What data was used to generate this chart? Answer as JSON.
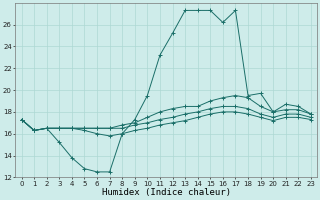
{
  "xlabel": "Humidex (Indice chaleur)",
  "background_color": "#ceecea",
  "grid_color": "#aed8d4",
  "line_color": "#1a6e68",
  "x": [
    0,
    1,
    2,
    3,
    4,
    5,
    6,
    7,
    8,
    9,
    10,
    11,
    12,
    13,
    14,
    15,
    16,
    17,
    18,
    19,
    20,
    21,
    22,
    23
  ],
  "line1": [
    17.3,
    16.3,
    16.5,
    15.2,
    13.8,
    12.8,
    12.5,
    12.5,
    16.0,
    17.3,
    19.5,
    23.2,
    25.2,
    27.3,
    27.3,
    27.3,
    26.2,
    27.3,
    19.5,
    19.7,
    18.0,
    18.7,
    18.5,
    17.8
  ],
  "line2": [
    17.3,
    16.3,
    16.5,
    16.5,
    16.5,
    16.5,
    16.5,
    16.5,
    16.8,
    17.0,
    17.5,
    18.0,
    18.3,
    18.5,
    18.5,
    19.0,
    19.3,
    19.5,
    19.3,
    18.5,
    18.0,
    18.2,
    18.2,
    17.8
  ],
  "line3": [
    17.3,
    16.3,
    16.5,
    16.5,
    16.5,
    16.5,
    16.5,
    16.5,
    16.5,
    16.8,
    17.0,
    17.3,
    17.5,
    17.8,
    18.0,
    18.3,
    18.5,
    18.5,
    18.3,
    17.8,
    17.5,
    17.8,
    17.8,
    17.5
  ],
  "line4": [
    17.3,
    16.3,
    16.5,
    16.5,
    16.5,
    16.3,
    16.0,
    15.8,
    16.0,
    16.3,
    16.5,
    16.8,
    17.0,
    17.2,
    17.5,
    17.8,
    18.0,
    18.0,
    17.8,
    17.5,
    17.2,
    17.5,
    17.5,
    17.3
  ],
  "ylim": [
    12,
    28
  ],
  "yticks": [
    12,
    14,
    16,
    18,
    20,
    22,
    24,
    26
  ],
  "xlim": [
    -0.5,
    23.5
  ]
}
